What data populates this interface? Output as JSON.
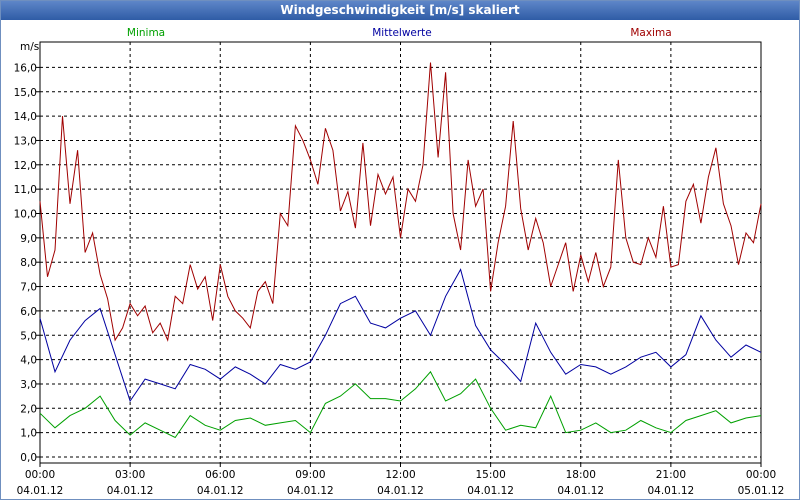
{
  "window": {
    "title": "Windgeschwindigkeit [m/s] skaliert"
  },
  "chart_data": {
    "type": "line",
    "title": "Windgeschwindigkeit [m/s] skaliert",
    "ylabel": "m/s",
    "xlabel": "",
    "ylim": [
      0,
      16.5
    ],
    "xlim": [
      0,
      24
    ],
    "grid": true,
    "y_ticks": [
      "0,0",
      "1,0",
      "2,0",
      "3,0",
      "4,0",
      "5,0",
      "6,0",
      "7,0",
      "8,0",
      "9,0",
      "10,0",
      "11,0",
      "12,0",
      "13,0",
      "14,0",
      "15,0",
      "16,0"
    ],
    "x_ticks": [
      {
        "time": "00:00",
        "date": "04.01.12"
      },
      {
        "time": "03:00",
        "date": "04.01.12"
      },
      {
        "time": "06:00",
        "date": "04.01.12"
      },
      {
        "time": "09:00",
        "date": "04.01.12"
      },
      {
        "time": "12:00",
        "date": "04.01.12"
      },
      {
        "time": "15:00",
        "date": "04.01.12"
      },
      {
        "time": "18:00",
        "date": "04.01.12"
      },
      {
        "time": "21:00",
        "date": "04.01.12"
      },
      {
        "time": "00:00",
        "date": "05.01.12"
      }
    ],
    "series": [
      {
        "name": "Minima",
        "color": "#00a000",
        "x": [
          0,
          0.5,
          1,
          1.5,
          2,
          2.5,
          3,
          3.5,
          4,
          4.5,
          5,
          5.5,
          6,
          6.5,
          7,
          7.5,
          8,
          8.5,
          9,
          9.5,
          10,
          10.5,
          11,
          11.5,
          12,
          12.5,
          13,
          13.5,
          14,
          14.5,
          15,
          15.5,
          16,
          16.5,
          17,
          17.5,
          18,
          18.5,
          19,
          19.5,
          20,
          20.5,
          21,
          21.5,
          22,
          22.5,
          23,
          23.5,
          24
        ],
        "values": [
          1.8,
          1.2,
          1.7,
          2.0,
          2.5,
          1.5,
          0.9,
          1.4,
          1.1,
          0.8,
          1.7,
          1.3,
          1.1,
          1.5,
          1.6,
          1.3,
          1.4,
          1.5,
          1.0,
          2.2,
          2.5,
          3.0,
          2.4,
          2.4,
          2.3,
          2.8,
          3.5,
          2.3,
          2.6,
          3.2,
          2.0,
          1.1,
          1.3,
          1.2,
          2.5,
          1.0,
          1.1,
          1.4,
          1.0,
          1.1,
          1.5,
          1.2,
          1.0,
          1.5,
          1.7,
          1.9,
          1.4,
          1.6,
          1.7
        ]
      },
      {
        "name": "Mittelwerte",
        "color": "#0000a0",
        "x": [
          0,
          0.5,
          1,
          1.5,
          2,
          2.5,
          3,
          3.5,
          4,
          4.5,
          5,
          5.5,
          6,
          6.5,
          7,
          7.5,
          8,
          8.5,
          9,
          9.5,
          10,
          10.5,
          11,
          11.5,
          12,
          12.5,
          13,
          13.5,
          14,
          14.5,
          15,
          15.5,
          16,
          16.5,
          17,
          17.5,
          18,
          18.5,
          19,
          19.5,
          20,
          20.5,
          21,
          21.5,
          22,
          22.5,
          23,
          23.5,
          24
        ],
        "values": [
          5.7,
          3.5,
          4.8,
          5.6,
          6.1,
          4.2,
          2.3,
          3.2,
          3.0,
          2.8,
          3.8,
          3.6,
          3.2,
          3.7,
          3.4,
          3.0,
          3.8,
          3.6,
          3.9,
          5.0,
          6.3,
          6.6,
          5.5,
          5.3,
          5.7,
          6.0,
          5.0,
          6.6,
          7.7,
          5.4,
          4.4,
          3.8,
          3.1,
          5.5,
          4.3,
          3.4,
          3.8,
          3.7,
          3.4,
          3.7,
          4.1,
          4.3,
          3.7,
          4.2,
          5.8,
          4.8,
          4.1,
          4.6,
          4.3
        ]
      },
      {
        "name": "Maxima",
        "color": "#a00000",
        "x": [
          0,
          0.25,
          0.5,
          0.75,
          1,
          1.25,
          1.5,
          1.75,
          2,
          2.25,
          2.5,
          2.75,
          3,
          3.25,
          3.5,
          3.75,
          4,
          4.25,
          4.5,
          4.75,
          5,
          5.25,
          5.5,
          5.75,
          6,
          6.25,
          6.5,
          6.75,
          7,
          7.25,
          7.5,
          7.75,
          8,
          8.25,
          8.5,
          8.75,
          9,
          9.25,
          9.5,
          9.75,
          10,
          10.25,
          10.5,
          10.75,
          11,
          11.25,
          11.5,
          11.75,
          12,
          12.25,
          12.5,
          12.75,
          13,
          13.25,
          13.5,
          13.75,
          14,
          14.25,
          14.5,
          14.75,
          15,
          15.25,
          15.5,
          15.75,
          16,
          16.25,
          16.5,
          16.75,
          17,
          17.25,
          17.5,
          17.75,
          18,
          18.25,
          18.5,
          18.75,
          19,
          19.25,
          19.5,
          19.75,
          20,
          20.25,
          20.5,
          20.75,
          21,
          21.25,
          21.5,
          21.75,
          22,
          22.25,
          22.5,
          22.75,
          23,
          23.25,
          23.5,
          23.75,
          24
        ],
        "values": [
          10.5,
          7.4,
          8.5,
          14.0,
          10.4,
          12.6,
          8.4,
          9.2,
          7.5,
          6.5,
          4.8,
          5.3,
          6.3,
          5.8,
          6.2,
          5.1,
          5.5,
          4.8,
          6.6,
          6.3,
          7.9,
          6.9,
          7.4,
          5.6,
          7.9,
          6.6,
          6.0,
          5.7,
          5.3,
          6.8,
          7.2,
          6.3,
          10.0,
          9.5,
          13.6,
          13.0,
          12.2,
          11.2,
          13.5,
          12.6,
          10.1,
          10.9,
          9.4,
          12.9,
          9.5,
          11.6,
          10.8,
          11.5,
          9.0,
          11.0,
          10.5,
          12.0,
          16.2,
          12.3,
          15.8,
          10.0,
          8.5,
          12.2,
          10.3,
          11.0,
          6.8,
          8.8,
          10.3,
          13.8,
          10.2,
          8.5,
          9.8,
          8.8,
          7.0,
          7.9,
          8.8,
          6.8,
          8.3,
          7.2,
          8.4,
          7.0,
          7.8,
          12.2,
          9.0,
          8.0,
          7.9,
          9.0,
          8.2,
          10.3,
          7.8,
          7.9,
          10.5,
          11.2,
          9.6,
          11.5,
          12.7,
          10.4,
          9.5,
          7.9,
          9.2,
          8.8,
          10.4
        ]
      }
    ]
  }
}
